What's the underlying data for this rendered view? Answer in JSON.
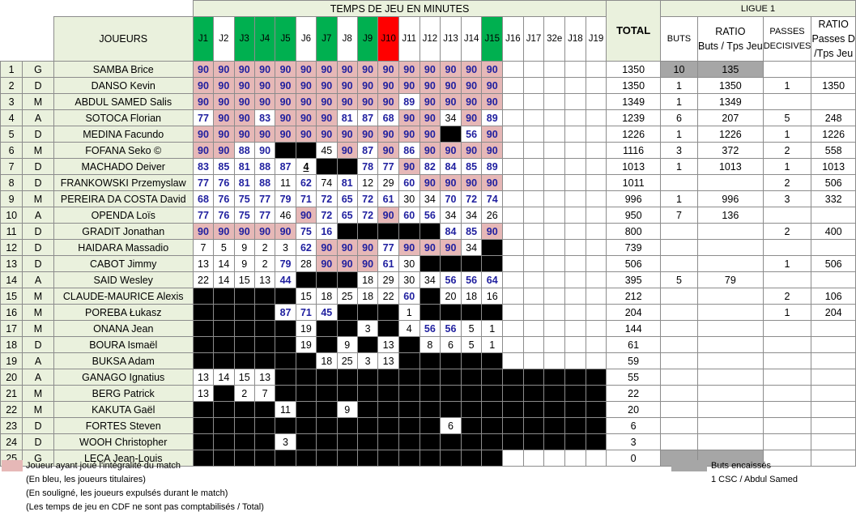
{
  "header": {
    "temps_title": "TEMPS DE JEU EN MINUTES",
    "joueurs": "JOUEURS",
    "total": "TOTAL",
    "ligue": "LIGUE 1",
    "buts": "BUTS",
    "ratio1_a": "RATIO",
    "ratio1_b": "Buts / Tps Jeu",
    "passes_a": "PASSES",
    "passes_b": "DECISIVES",
    "ratio2_a": "RATIO",
    "ratio2_b": "Passes D",
    "ratio2_c": "/Tps Jeu"
  },
  "journees": [
    "J1",
    "J2",
    "J3",
    "J4",
    "J5",
    "J6",
    "J7",
    "J8",
    "J9",
    "J10",
    "J11",
    "J12",
    "J13",
    "J14",
    "J15",
    "J16",
    "J17",
    "32e",
    "J18",
    "J19"
  ],
  "journee_colors": [
    "g",
    "w",
    "g",
    "g",
    "g",
    "w",
    "g",
    "w",
    "g",
    "r",
    "w",
    "w",
    "w",
    "w",
    "g",
    "w",
    "w",
    "w",
    "w",
    "w"
  ],
  "players": [
    {
      "n": "1",
      "p": "G",
      "name": "SAMBA Brice",
      "cells": [
        "90f",
        "90f",
        "90f",
        "90f",
        "90f",
        "90f",
        "90f",
        "90f",
        "90f",
        "90f",
        "90f",
        "90f",
        "90f",
        "90f",
        "90f",
        "",
        "",
        "",
        "",
        ""
      ],
      "total": "1350",
      "buts": "10",
      "r1": "135",
      "pd": "",
      "r2": "",
      "gk": true
    },
    {
      "n": "2",
      "p": "D",
      "name": "DANSO Kevin",
      "cells": [
        "90f",
        "90f",
        "90f",
        "90f",
        "90f",
        "90f",
        "90f",
        "90f",
        "90f",
        "90f",
        "90f",
        "90f",
        "90f",
        "90f",
        "90f",
        "",
        "",
        "",
        "",
        ""
      ],
      "total": "1350",
      "buts": "1",
      "r1": "1350",
      "pd": "1",
      "r2": "1350"
    },
    {
      "n": "3",
      "p": "M",
      "name": "ABDUL SAMED Salis",
      "cells": [
        "90f",
        "90f",
        "90f",
        "90f",
        "90f",
        "90f",
        "90f",
        "90f",
        "90f",
        "90f",
        "89b",
        "90f",
        "90f",
        "90f",
        "90f",
        "",
        "",
        "",
        "",
        ""
      ],
      "total": "1349",
      "buts": "1",
      "r1": "1349",
      "pd": "",
      "r2": ""
    },
    {
      "n": "4",
      "p": "A",
      "name": "SOTOCA Florian",
      "cells": [
        "77b",
        "90f",
        "90f",
        "83b",
        "90f",
        "90f",
        "90f",
        "81b",
        "87b",
        "68b",
        "90f",
        "90f",
        "34",
        "90f",
        "89b",
        "",
        "",
        "",
        "",
        ""
      ],
      "total": "1239",
      "buts": "6",
      "r1": "207",
      "pd": "5",
      "r2": "248"
    },
    {
      "n": "5",
      "p": "D",
      "name": "MEDINA Facundo",
      "cells": [
        "90f",
        "90f",
        "90f",
        "90f",
        "90f",
        "90f",
        "90f",
        "90f",
        "90f",
        "90f",
        "90f",
        "90f",
        "K",
        "56b",
        "90f",
        "",
        "",
        "",
        "",
        ""
      ],
      "total": "1226",
      "buts": "1",
      "r1": "1226",
      "pd": "1",
      "r2": "1226"
    },
    {
      "n": "6",
      "p": "M",
      "name": "FOFANA Seko ©",
      "cells": [
        "90f",
        "90f",
        "88b",
        "90b",
        "K",
        "K",
        "45",
        "90f",
        "87b",
        "90f",
        "86b",
        "90f",
        "90f",
        "90f",
        "90f",
        "",
        "",
        "",
        "",
        ""
      ],
      "total": "1116",
      "buts": "3",
      "r1": "372",
      "pd": "2",
      "r2": "558"
    },
    {
      "n": "7",
      "p": "D",
      "name": "MACHADO Deiver",
      "cells": [
        "83b",
        "85b",
        "81b",
        "88b",
        "87b",
        "4u",
        "K",
        "K",
        "78b",
        "77b",
        "90f",
        "82b",
        "84b",
        "85b",
        "89b",
        "",
        "",
        "",
        "",
        ""
      ],
      "total": "1013",
      "buts": "1",
      "r1": "1013",
      "pd": "1",
      "r2": "1013"
    },
    {
      "n": "8",
      "p": "D",
      "name": "FRANKOWSKI Przemyslaw",
      "cells": [
        "77b",
        "76b",
        "81b",
        "88b",
        "11",
        "62b",
        "74",
        "81b",
        "12",
        "29",
        "60b",
        "90f",
        "90f",
        "90f",
        "90f",
        "",
        "",
        "",
        "",
        ""
      ],
      "total": "1011",
      "buts": "",
      "r1": "",
      "pd": "2",
      "r2": "506"
    },
    {
      "n": "9",
      "p": "M",
      "name": "PEREIRA DA COSTA David",
      "cells": [
        "68b",
        "76b",
        "75b",
        "77b",
        "79b",
        "71b",
        "72b",
        "65b",
        "72b",
        "61b",
        "30",
        "34",
        "70b",
        "72b",
        "74b",
        "",
        "",
        "",
        "",
        ""
      ],
      "total": "996",
      "buts": "1",
      "r1": "996",
      "pd": "3",
      "r2": "332"
    },
    {
      "n": "10",
      "p": "A",
      "name": "OPENDA Loïs",
      "cells": [
        "77b",
        "76b",
        "75b",
        "77b",
        "46",
        "90f",
        "72b",
        "65b",
        "72b",
        "90f",
        "60b",
        "56b",
        "34",
        "34",
        "26",
        "",
        "",
        "",
        "",
        ""
      ],
      "total": "950",
      "buts": "7",
      "r1": "136",
      "pd": "",
      "r2": ""
    },
    {
      "n": "11",
      "p": "D",
      "name": "GRADIT Jonathan",
      "cells": [
        "90f",
        "90f",
        "90f",
        "90f",
        "90f",
        "75b",
        "16b",
        "K",
        "K",
        "K",
        "K",
        "K",
        "84b",
        "85b",
        "90f",
        "",
        "",
        "",
        "",
        ""
      ],
      "total": "800",
      "buts": "",
      "r1": "",
      "pd": "2",
      "r2": "400"
    },
    {
      "n": "12",
      "p": "D",
      "name": "HAIDARA Massadio",
      "cells": [
        "7",
        "5",
        "9",
        "2",
        "3",
        "62b",
        "90f",
        "90f",
        "90f",
        "77b",
        "90f",
        "90f",
        "90f",
        "34",
        "K",
        "",
        "",
        "",
        "",
        ""
      ],
      "total": "739",
      "buts": "",
      "r1": "",
      "pd": "",
      "r2": ""
    },
    {
      "n": "13",
      "p": "D",
      "name": "CABOT Jimmy",
      "cells": [
        "13",
        "14",
        "9",
        "2",
        "79b",
        "28",
        "90f",
        "90f",
        "90f",
        "61b",
        "30",
        "K",
        "K",
        "K",
        "K",
        "",
        "",
        "",
        "",
        ""
      ],
      "total": "506",
      "buts": "",
      "r1": "",
      "pd": "1",
      "r2": "506"
    },
    {
      "n": "14",
      "p": "A",
      "name": "SAID Wesley",
      "cells": [
        "22",
        "14",
        "15",
        "13",
        "44b",
        "K",
        "K",
        "K",
        "18",
        "29",
        "30",
        "34",
        "56b",
        "56b",
        "64b",
        "",
        "",
        "",
        "",
        ""
      ],
      "total": "395",
      "buts": "5",
      "r1": "79",
      "pd": "",
      "r2": ""
    },
    {
      "n": "15",
      "p": "M",
      "name": "CLAUDE-MAURICE Alexis",
      "cells": [
        "K",
        "K",
        "K",
        "K",
        "K",
        "15",
        "18",
        "25",
        "18",
        "22",
        "60b",
        "K",
        "20",
        "18",
        "16",
        "",
        "",
        "",
        "",
        ""
      ],
      "total": "212",
      "buts": "",
      "r1": "",
      "pd": "2",
      "r2": "106"
    },
    {
      "n": "16",
      "p": "M",
      "name": "POREBA Łukasz",
      "cells": [
        "K",
        "K",
        "K",
        "K",
        "87b",
        "71b",
        "45b",
        "K",
        "K",
        "K",
        "1",
        "K",
        "K",
        "K",
        "K",
        "",
        "",
        "",
        "",
        ""
      ],
      "total": "204",
      "buts": "",
      "r1": "",
      "pd": "1",
      "r2": "204"
    },
    {
      "n": "17",
      "p": "M",
      "name": "ONANA Jean",
      "cells": [
        "K",
        "K",
        "K",
        "K",
        "K",
        "19",
        "K",
        "K",
        "3",
        "K",
        "4",
        "56b",
        "56b",
        "5",
        "1",
        "",
        "",
        "",
        "",
        ""
      ],
      "total": "144",
      "buts": "",
      "r1": "",
      "pd": "",
      "r2": ""
    },
    {
      "n": "18",
      "p": "D",
      "name": "BOURA Ismaël",
      "cells": [
        "K",
        "K",
        "K",
        "K",
        "K",
        "19",
        "K",
        "9",
        "K",
        "13",
        "K",
        "8",
        "6",
        "5",
        "1",
        "",
        "",
        "",
        "",
        ""
      ],
      "total": "61",
      "buts": "",
      "r1": "",
      "pd": "",
      "r2": ""
    },
    {
      "n": "19",
      "p": "A",
      "name": "BUKSA Adam",
      "cells": [
        "K",
        "K",
        "K",
        "K",
        "K",
        "K",
        "18",
        "25",
        "3",
        "13",
        "K",
        "K",
        "K",
        "K",
        "K",
        "",
        "",
        "",
        "",
        ""
      ],
      "total": "59",
      "buts": "",
      "r1": "",
      "pd": "",
      "r2": ""
    },
    {
      "n": "20",
      "p": "A",
      "name": "GANAGO Ignatius",
      "cells": [
        "13",
        "14",
        "15",
        "13",
        "K",
        "K",
        "K",
        "K",
        "K",
        "K",
        "K",
        "K",
        "K",
        "K",
        "K",
        "K",
        "K",
        "K",
        "K",
        "K"
      ],
      "total": "55",
      "buts": "",
      "r1": "",
      "pd": "",
      "r2": ""
    },
    {
      "n": "21",
      "p": "M",
      "name": "BERG Patrick",
      "cells": [
        "13",
        "K",
        "2",
        "7",
        "K",
        "K",
        "K",
        "K",
        "K",
        "K",
        "K",
        "K",
        "K",
        "K",
        "K",
        "K",
        "K",
        "K",
        "K",
        "K"
      ],
      "total": "22",
      "buts": "",
      "r1": "",
      "pd": "",
      "r2": ""
    },
    {
      "n": "22",
      "p": "M",
      "name": "KAKUTA Gaël",
      "cells": [
        "K",
        "K",
        "K",
        "K",
        "11",
        "K",
        "K",
        "9",
        "K",
        "K",
        "K",
        "K",
        "K",
        "K",
        "K",
        "K",
        "K",
        "K",
        "K",
        "K"
      ],
      "total": "20",
      "buts": "",
      "r1": "",
      "pd": "",
      "r2": ""
    },
    {
      "n": "23",
      "p": "D",
      "name": "FORTES Steven",
      "cells": [
        "K",
        "K",
        "K",
        "K",
        "K",
        "K",
        "K",
        "K",
        "K",
        "K",
        "K",
        "K",
        "6",
        "K",
        "K",
        "K",
        "K",
        "K",
        "K",
        "K"
      ],
      "total": "6",
      "buts": "",
      "r1": "",
      "pd": "",
      "r2": ""
    },
    {
      "n": "24",
      "p": "D",
      "name": "WOOH Christopher",
      "cells": [
        "K",
        "K",
        "K",
        "K",
        "3",
        "K",
        "K",
        "K",
        "K",
        "K",
        "K",
        "K",
        "K",
        "K",
        "K",
        "K",
        "K",
        "K",
        "K",
        "K"
      ],
      "total": "3",
      "buts": "",
      "r1": "",
      "pd": "",
      "r2": ""
    },
    {
      "n": "25",
      "p": "G",
      "name": "LECA Jean-Louis",
      "cells": [
        "K",
        "K",
        "K",
        "K",
        "K",
        "K",
        "K",
        "K",
        "K",
        "K",
        "K",
        "K",
        "K",
        "K",
        "K",
        "",
        "",
        "",
        "",
        ""
      ],
      "total": "0",
      "buts": "",
      "r1": "",
      "pd": "",
      "r2": "",
      "gk": true
    }
  ],
  "legend": {
    "full_match": "Joueur ayant joué l'intégralité du match",
    "blue": "(En bleu, les joueurs titulaires)",
    "underline": "(En souligné, les joueurs expulsés durant le match)",
    "cdf": "(Les temps de jeu en CDF ne sont pas comptabilisés / Total)",
    "buts_encaisses": "Buts encaissés",
    "csc": "1 CSC / Abdul Samed"
  },
  "colors": {
    "full": "#e6b8b7",
    "green": "#00b050",
    "red": "#ff0000",
    "label_bg": "#eaf1dd",
    "blue_text": "#1f1f9f",
    "grey": "#a6a6a6"
  }
}
